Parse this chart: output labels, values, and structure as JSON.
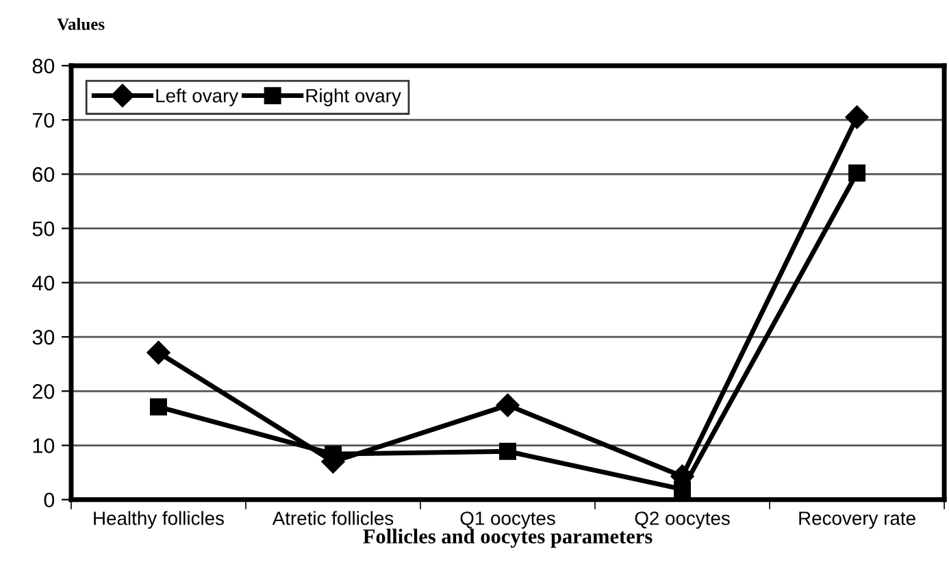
{
  "chart_data": {
    "type": "line",
    "xlabel": "Follicles and oocytes parameters",
    "ylabel": "Values",
    "categories": [
      "Healthy follicles",
      "Atretic follicles",
      "Q1 oocytes",
      "Q2 oocytes",
      "Recovery rate"
    ],
    "series": [
      {
        "name": "Left ovary",
        "color": "#000000",
        "marker": "diamond",
        "values": [
          27.1,
          7.0,
          17.4,
          4.3,
          70.5
        ]
      },
      {
        "name": "Right ovary",
        "color": "#000000",
        "marker": "square",
        "values": [
          17.1,
          8.4,
          8.9,
          1.9,
          60.2
        ]
      }
    ],
    "ylim": [
      0,
      80
    ],
    "yticks": [
      0,
      10,
      20,
      30,
      40,
      50,
      60,
      70,
      80
    ],
    "grid": "y",
    "legend": "top left",
    "line_style": "solid"
  }
}
